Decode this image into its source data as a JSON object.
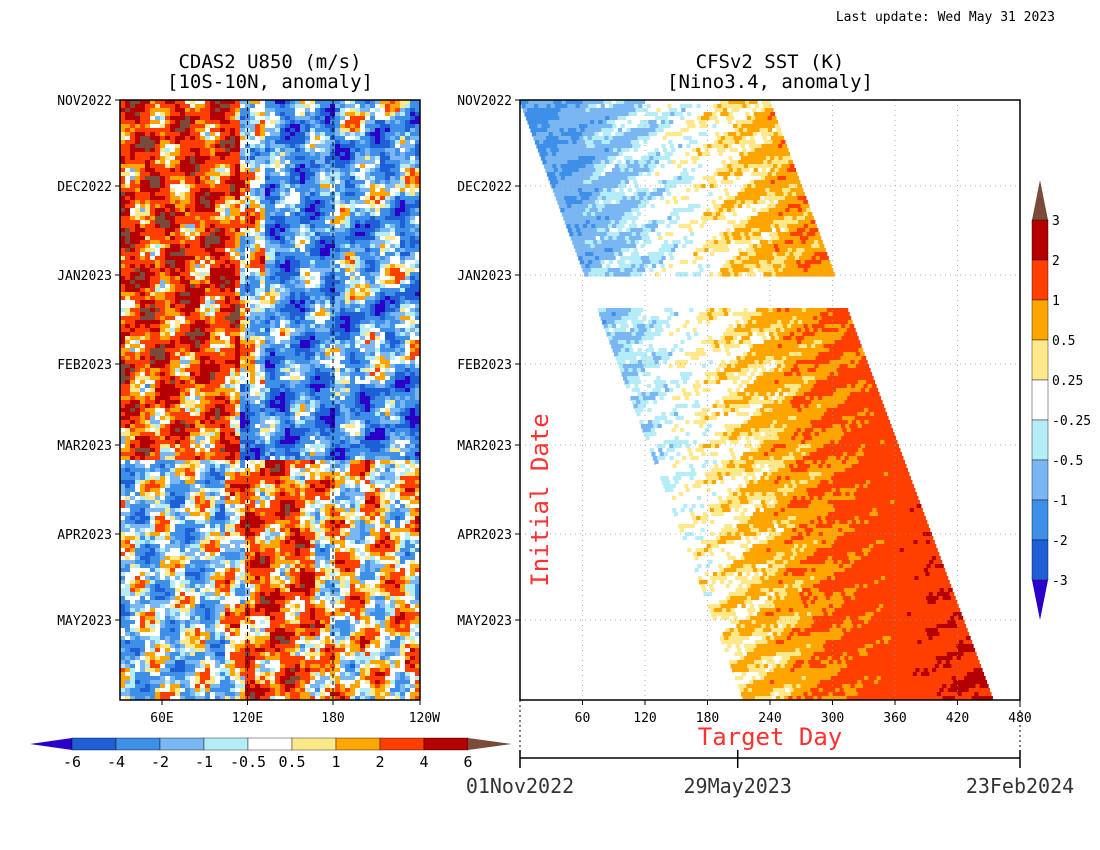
{
  "header": {
    "last_update": "Last update: Wed May 31 2023"
  },
  "chart_data": [
    {
      "type": "heatmap",
      "title": "CDAS2 U850 (m/s)",
      "subtitle": "[10S-10N, anomaly]",
      "x_ticks": [
        "60E",
        "120E",
        "180",
        "120W"
      ],
      "y_ticks": [
        "NOV2022",
        "DEC2022",
        "JAN2023",
        "FEB2023",
        "MAR2023",
        "APR2023",
        "MAY2023"
      ],
      "reference_lines": [
        "120E",
        "180"
      ],
      "colorbar": {
        "orientation": "horizontal",
        "labels": [
          "-6",
          "-4",
          "-2",
          "-1",
          "-0.5",
          "0.5",
          "1",
          "2",
          "4",
          "6"
        ],
        "levels": [
          -6,
          -4,
          -2,
          -1,
          -0.5,
          0.5,
          1,
          2,
          4,
          6
        ],
        "colors": [
          "#2a00c8",
          "#1f5fd6",
          "#3d8fe8",
          "#7ab6f2",
          "#b4ecf8",
          "#ffffff",
          "#ffe88a",
          "#ffa500",
          "#ff3f00",
          "#b40000",
          "#7a4a3a"
        ]
      },
      "features": [
        {
          "region": "western (40E-110E)",
          "months": "Nov2022-Feb2023",
          "sign": "positive",
          "max_anomaly": 6
        },
        {
          "region": "central (130E-180)",
          "months": "Nov2022-Feb2023",
          "sign": "negative",
          "min_anomaly": -6
        },
        {
          "region": "130E-170E",
          "months": "Mar2023-May2023",
          "sign": "positive",
          "max_anomaly": 6
        }
      ]
    },
    {
      "type": "heatmap",
      "title": "CFSv2 SST (K)",
      "subtitle": "[Nino3.4, anomaly]",
      "xlabel": "Target Day",
      "ylabel": "Initial Date",
      "x_ticks": [
        60,
        120,
        180,
        240,
        300,
        360,
        420,
        480
      ],
      "xlim": [
        0,
        480
      ],
      "y_ticks": [
        "NOV2022",
        "DEC2022",
        "JAN2023",
        "FEB2023",
        "MAR2023",
        "APR2023",
        "MAY2023"
      ],
      "date_axis": [
        "01Nov2022",
        "29May2023",
        "23Feb2024"
      ],
      "colorbar": {
        "orientation": "vertical",
        "labels": [
          "3",
          "2",
          "1",
          "0.5",
          "0.25",
          "-0.25",
          "-0.5",
          "-1",
          "-2",
          "-3"
        ],
        "levels": [
          -3,
          -2,
          -1,
          -0.5,
          -0.25,
          0.25,
          0.5,
          1,
          2,
          3
        ],
        "colors": [
          "#2a00c8",
          "#1f5fd6",
          "#3d8fe8",
          "#7ab6f2",
          "#b4ecf8",
          "#ffffff",
          "#ffe88a",
          "#ffa500",
          "#ff3f00",
          "#b40000",
          "#7a4a3a"
        ]
      },
      "features": [
        {
          "initial": "Nov2022",
          "target_day_range": [
            0,
            300
          ],
          "anomaly_range": [
            -1,
            1
          ]
        },
        {
          "initial": "Mid-Jan2023",
          "target_day_range": [
            70,
            320
          ],
          "anomaly_range": [
            -0.5,
            1
          ]
        },
        {
          "initial": "May2023",
          "target_day_range": [
            210,
            450
          ],
          "anomaly_range": [
            0.5,
            2
          ]
        }
      ]
    }
  ]
}
